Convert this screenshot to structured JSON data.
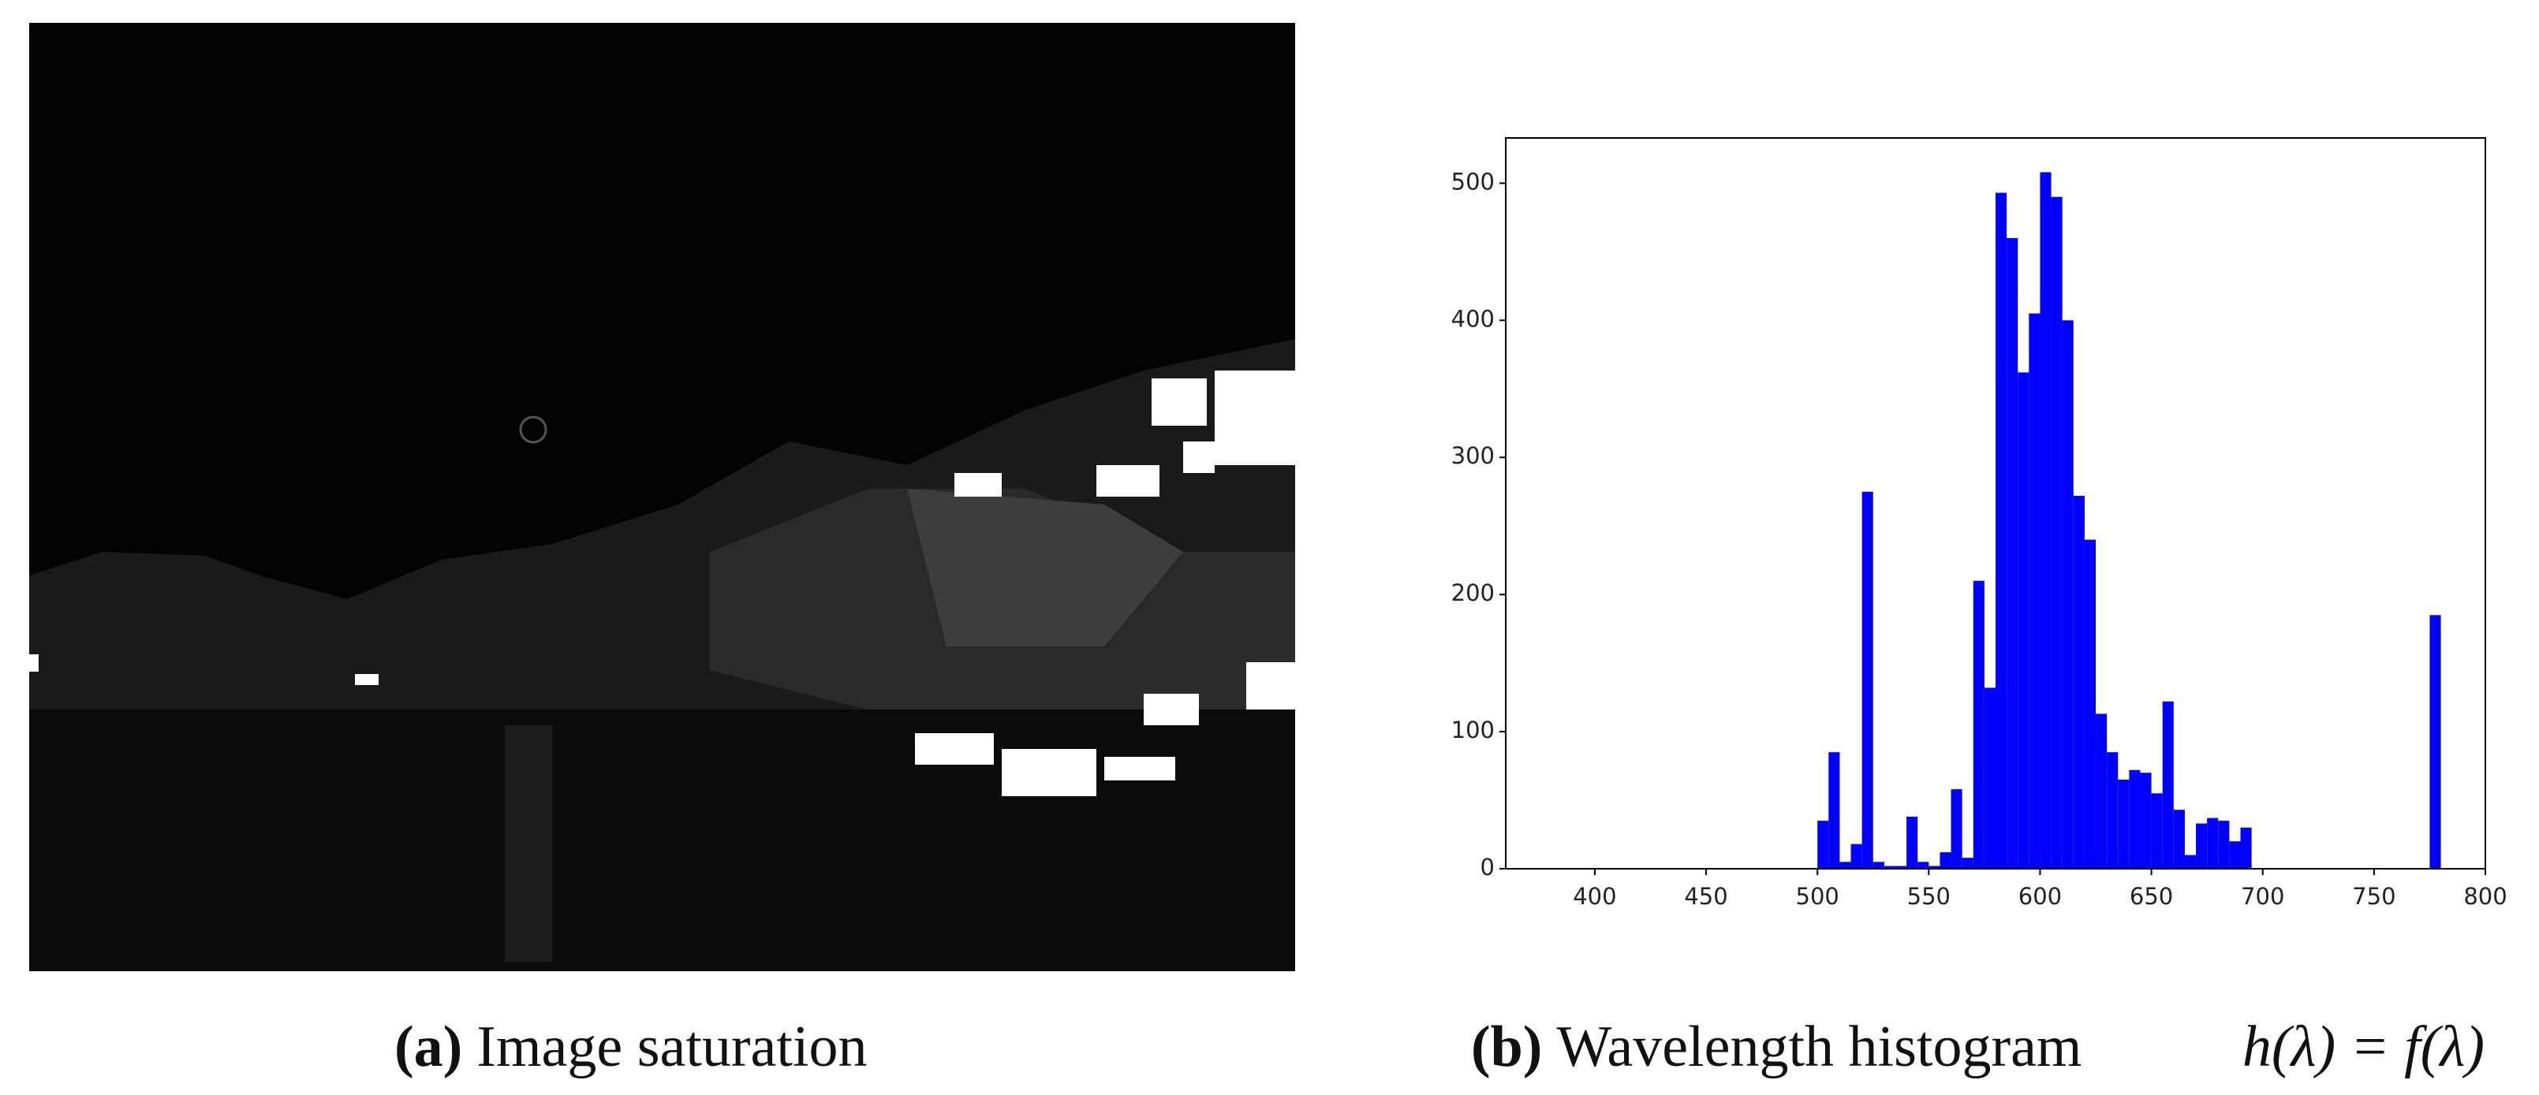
{
  "chart_data": [
    {
      "type": "image",
      "caption": {
        "label": "(a)",
        "text": "Image saturation"
      }
    },
    {
      "type": "histogram",
      "caption": {
        "label": "(b)",
        "text": "Wavelength histogram",
        "formula": "h(λ) = f(λ)"
      },
      "color": "#0000ff",
      "bins": [
        380,
        385,
        390,
        395,
        400,
        405,
        410,
        415,
        420,
        425,
        430,
        435,
        440,
        445,
        450,
        455,
        460,
        465,
        470,
        475,
        480,
        485,
        490,
        495,
        500,
        505,
        510,
        515,
        520,
        525,
        530,
        535,
        540,
        545,
        550,
        555,
        560,
        565,
        570,
        575,
        580,
        585,
        590,
        595,
        600,
        605,
        610,
        615,
        620,
        625,
        630,
        635,
        640,
        645,
        650,
        655,
        660,
        665,
        670,
        675,
        680,
        685,
        690,
        695,
        700,
        705,
        710,
        715,
        720,
        725,
        730,
        735,
        740,
        745,
        750,
        755,
        760,
        765,
        770,
        775,
        780
      ],
      "values": [
        0,
        0,
        0,
        0,
        0,
        0,
        0,
        0,
        0,
        0,
        0,
        0,
        0,
        0,
        0,
        0,
        0,
        0,
        0,
        0,
        0,
        0,
        0,
        0,
        35,
        85,
        5,
        18,
        275,
        5,
        2,
        2,
        38,
        5,
        2,
        12,
        58,
        8,
        210,
        132,
        493,
        460,
        362,
        405,
        508,
        490,
        400,
        272,
        240,
        113,
        85,
        65,
        72,
        70,
        55,
        122,
        43,
        10,
        33,
        37,
        35,
        20,
        30,
        0,
        0,
        0,
        0,
        0,
        0,
        0,
        0,
        0,
        0,
        0,
        0,
        0,
        0,
        0,
        0,
        185
      ],
      "xlim": [
        360,
        800
      ],
      "xticks": [
        400,
        450,
        500,
        550,
        600,
        650,
        700,
        750,
        800
      ],
      "ylim": [
        0,
        533
      ],
      "yticks": [
        0,
        100,
        200,
        300,
        400,
        500
      ],
      "grid": false
    }
  ]
}
